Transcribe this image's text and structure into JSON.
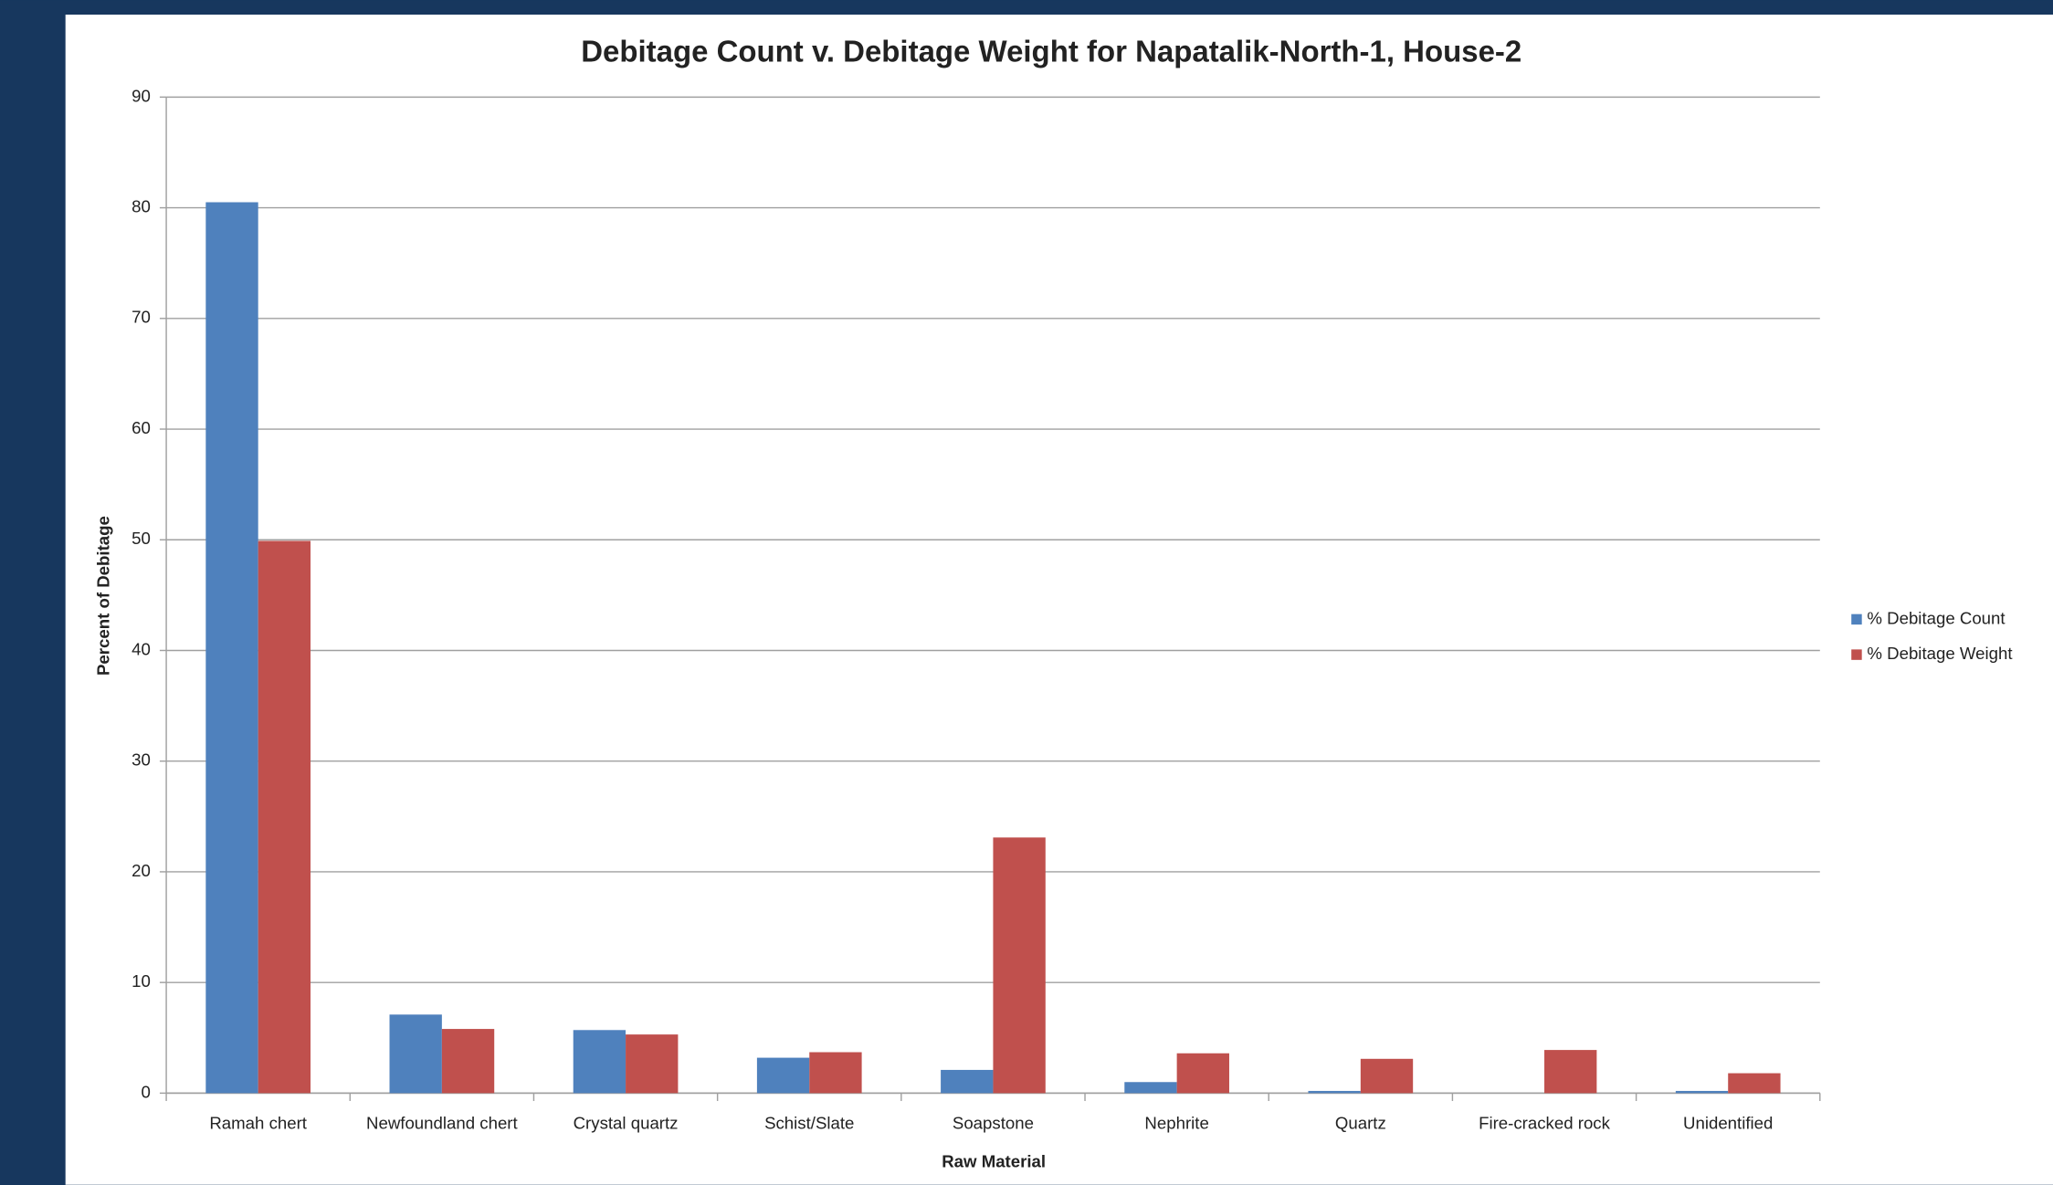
{
  "chart_data": {
    "type": "bar",
    "title": "Debitage Count v. Debitage Weight for Napatalik-North-1, House-2",
    "x_label": "Raw Material",
    "y_label": "Percent of Debitage",
    "categories": [
      "Ramah chert",
      "Newfoundland chert",
      "Crystal quartz",
      "Schist/Slate",
      "Soapstone",
      "Nephrite",
      "Quartz",
      "Fire-cracked rock",
      "Unidentified"
    ],
    "series": [
      {
        "name": "% Debitage Count",
        "color": "#4f81bd",
        "values": [
          80.5,
          7.1,
          5.7,
          3.2,
          2.1,
          1.0,
          0.2,
          0,
          0.2
        ]
      },
      {
        "name": "% Debitage Weight",
        "color": "#c0504d",
        "values": [
          49.9,
          5.8,
          5.3,
          3.7,
          23.1,
          3.6,
          3.1,
          3.9,
          1.8
        ]
      }
    ],
    "ylim": [
      0,
      90
    ],
    "yticks": [
      0,
      10,
      20,
      30,
      40,
      50,
      60,
      70,
      80,
      90
    ],
    "grid": true,
    "legend": "right"
  }
}
